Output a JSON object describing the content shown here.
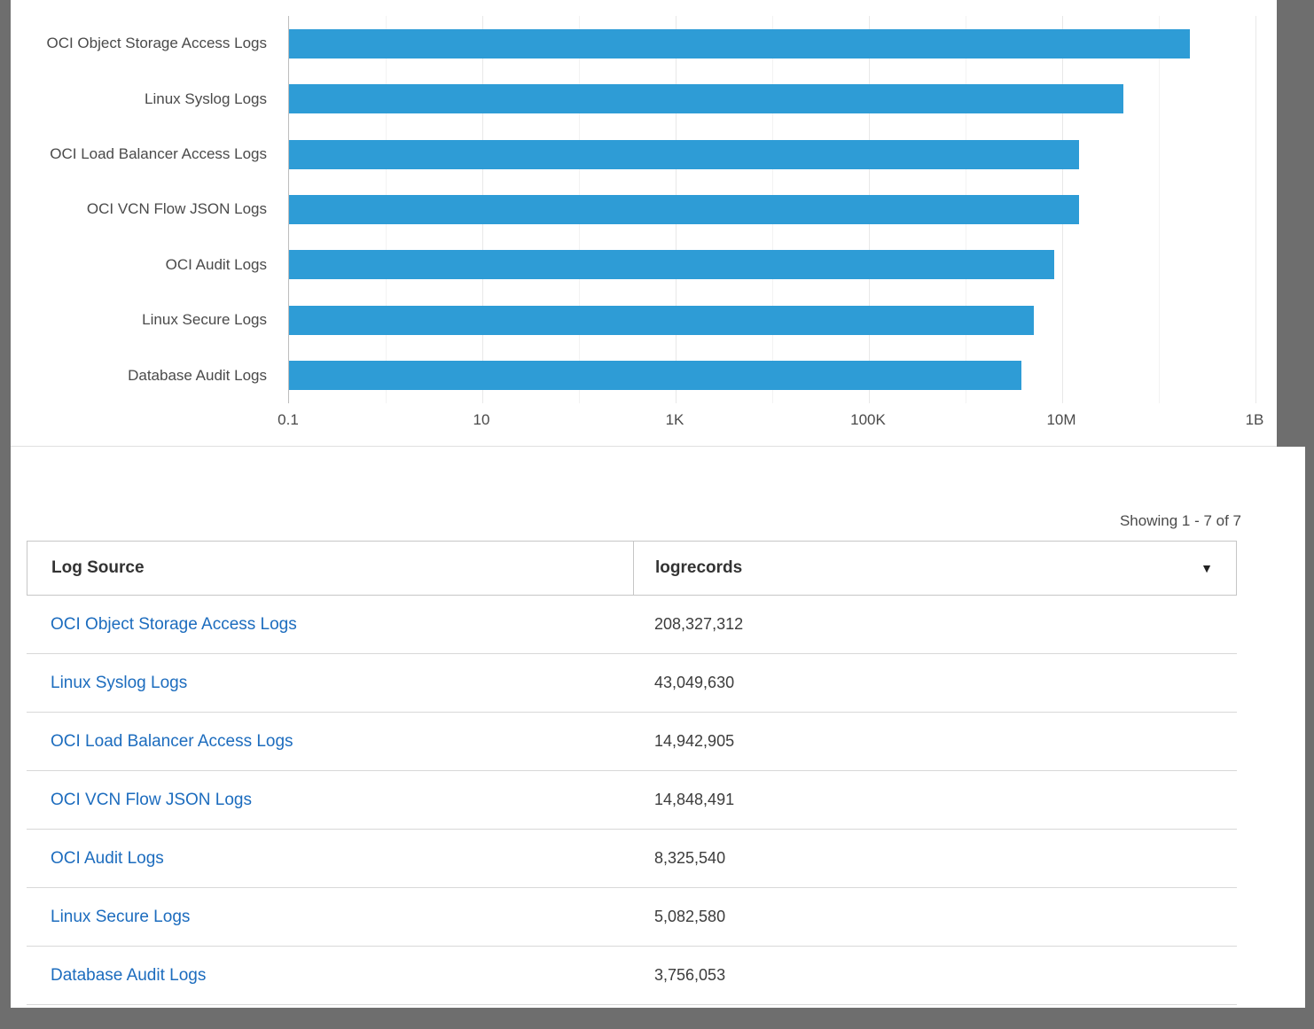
{
  "colors": {
    "bar": "#2E9CD6",
    "link": "#1C6CBE",
    "frame_background": "#6E6E6E"
  },
  "icons": {
    "sort_desc": "▼"
  },
  "chart_data": {
    "type": "bar",
    "orientation": "horizontal",
    "title": "",
    "xlabel": "",
    "ylabel": "",
    "x_scale": "log",
    "x_min": 0.1,
    "x_max": 1000000000,
    "x_ticks": [
      "0.1",
      "10",
      "1K",
      "100K",
      "10M",
      "1B"
    ],
    "grid": "vertical",
    "bar_color": "#2E9CD6",
    "categories": [
      "OCI Object Storage Access Logs",
      "Linux Syslog Logs",
      "OCI Load Balancer Access Logs",
      "OCI VCN Flow JSON Logs",
      "OCI Audit Logs",
      "Linux Secure Logs",
      "Database Audit Logs"
    ],
    "values": [
      208327312,
      43049630,
      14942905,
      14848491,
      8325540,
      5082580,
      3756053
    ]
  },
  "table": {
    "showing_text": "Showing 1 - 7 of 7",
    "columns": [
      {
        "label": "Log Source"
      },
      {
        "label": "logrecords",
        "sort": "desc"
      }
    ],
    "rows": [
      {
        "source": "OCI Object Storage Access Logs",
        "records": "208,327,312"
      },
      {
        "source": "Linux Syslog Logs",
        "records": "43,049,630"
      },
      {
        "source": "OCI Load Balancer Access Logs",
        "records": "14,942,905"
      },
      {
        "source": "OCI VCN Flow JSON Logs",
        "records": "14,848,491"
      },
      {
        "source": "OCI Audit Logs",
        "records": "8,325,540"
      },
      {
        "source": "Linux Secure Logs",
        "records": "5,082,580"
      },
      {
        "source": "Database Audit Logs",
        "records": "3,756,053"
      }
    ]
  }
}
